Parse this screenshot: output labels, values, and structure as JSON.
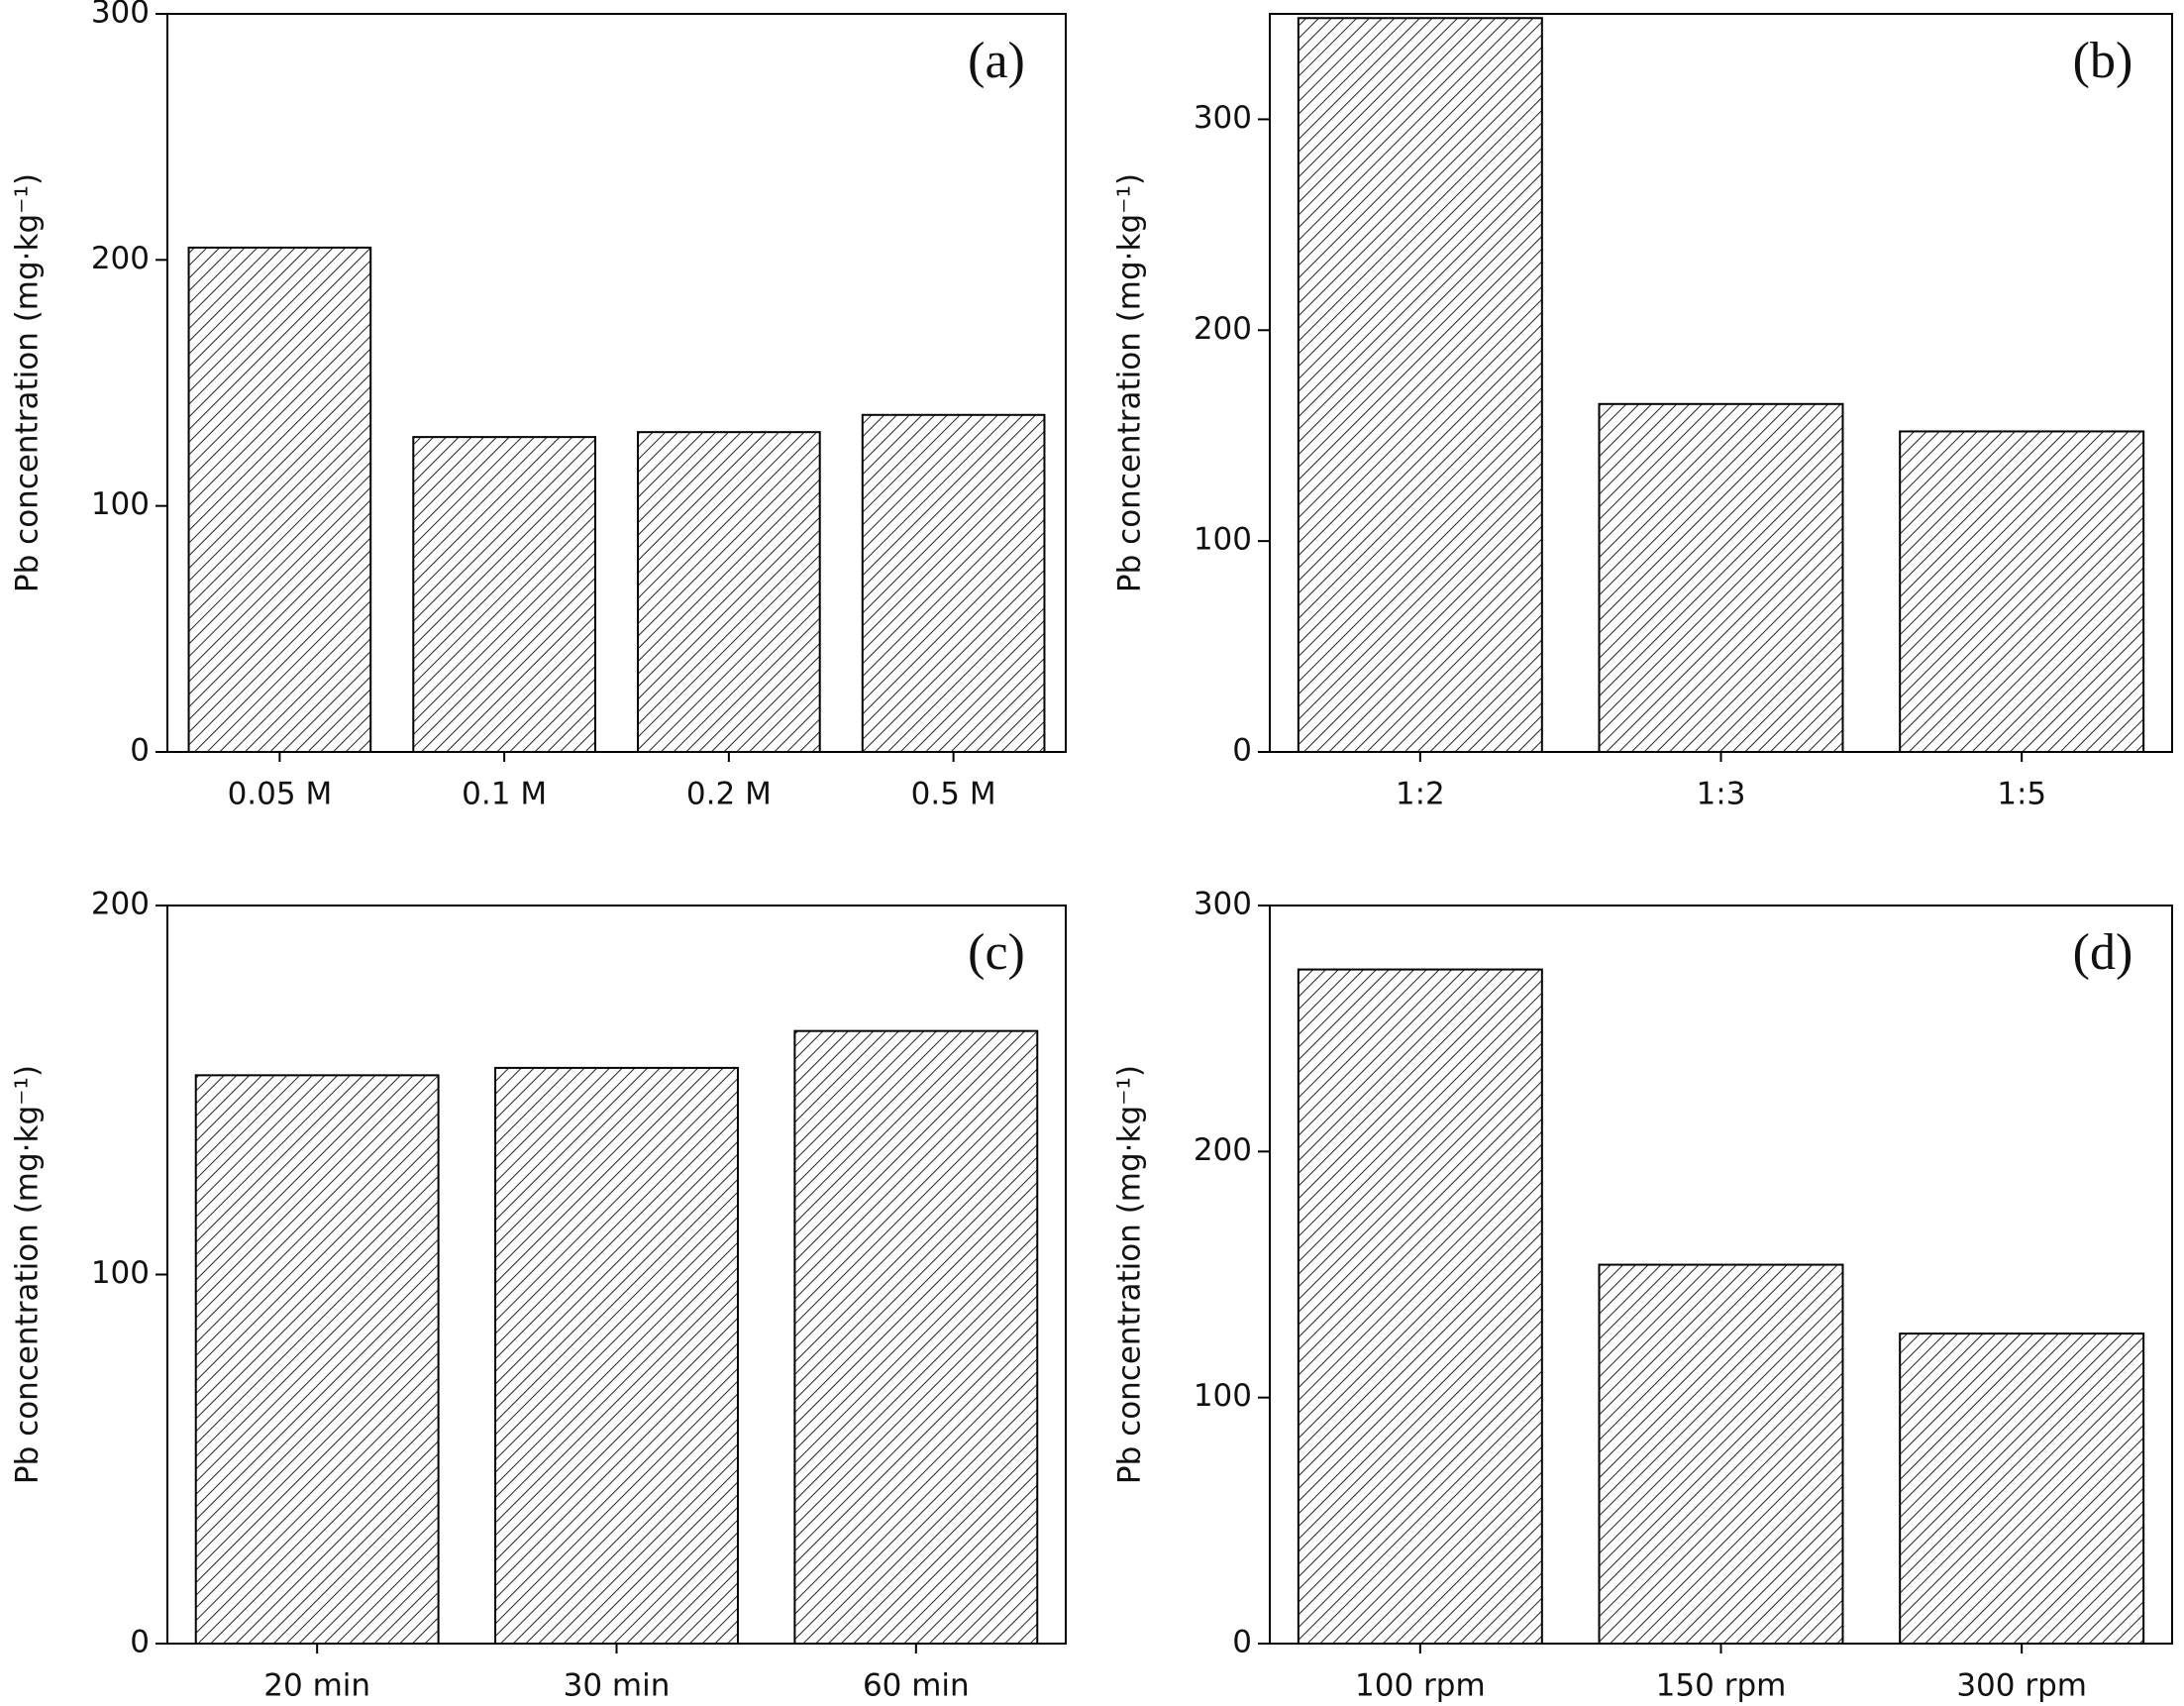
{
  "chart_data": [
    {
      "type": "bar",
      "annotation": "(a)",
      "ylabel": "Pb concentration (mg·kg⁻¹)",
      "categories": [
        "0.05 M",
        "0.1 M",
        "0.2 M",
        "0.5 M"
      ],
      "values": [
        205,
        128,
        130,
        137
      ],
      "ylim": [
        0,
        300
      ],
      "yticks": [
        0,
        100,
        200,
        300
      ],
      "color": "#222222"
    },
    {
      "type": "bar",
      "annotation": "(b)",
      "ylabel": "Pb concentration (mg·kg⁻¹)",
      "categories": [
        "1:2",
        "1:3",
        "1:5"
      ],
      "values": [
        348,
        165,
        152
      ],
      "ylim": [
        0,
        350
      ],
      "yticks": [
        0,
        100,
        200,
        300
      ],
      "color": "#222222"
    },
    {
      "type": "bar",
      "annotation": "(c)",
      "ylabel": "Pb concentration (mg·kg⁻¹)",
      "categories": [
        "20 min",
        "30 min",
        "60 min"
      ],
      "values": [
        154,
        156,
        166
      ],
      "ylim": [
        0,
        200
      ],
      "yticks": [
        0,
        100,
        200
      ],
      "color": "#222222"
    },
    {
      "type": "bar",
      "annotation": "(d)",
      "ylabel": "Pb concentration (mg·kg⁻¹)",
      "categories": [
        "100 rpm",
        "150 rpm",
        "300 rpm"
      ],
      "values": [
        274,
        154,
        126
      ],
      "ylim": [
        0,
        300
      ],
      "yticks": [
        0,
        100,
        200,
        300
      ],
      "color": "#222222"
    }
  ]
}
